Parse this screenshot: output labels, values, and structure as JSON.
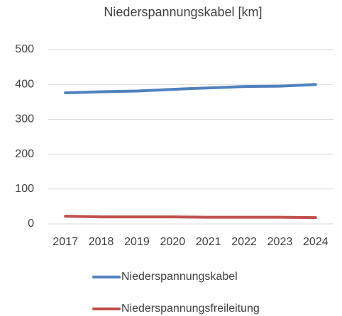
{
  "chart_data": {
    "type": "line",
    "title": "Niederspannungskabel [km]",
    "categories": [
      "2017",
      "2018",
      "2019",
      "2020",
      "2021",
      "2022",
      "2023",
      "2024"
    ],
    "series": [
      {
        "name": "Niederspannungskabel",
        "color": "#4f81bd",
        "values": [
          376,
          379,
          381,
          386,
          390,
          394,
          395,
          400
        ]
      },
      {
        "name": "Niederspannungsfreileitung",
        "color": "#c0504d",
        "values": [
          22,
          20,
          20,
          20,
          19,
          19,
          19,
          18
        ]
      }
    ],
    "ylim": [
      0,
      500
    ],
    "yticks": [
      0,
      100,
      200,
      300,
      400,
      500
    ],
    "grid": true,
    "legend": "bottom"
  }
}
